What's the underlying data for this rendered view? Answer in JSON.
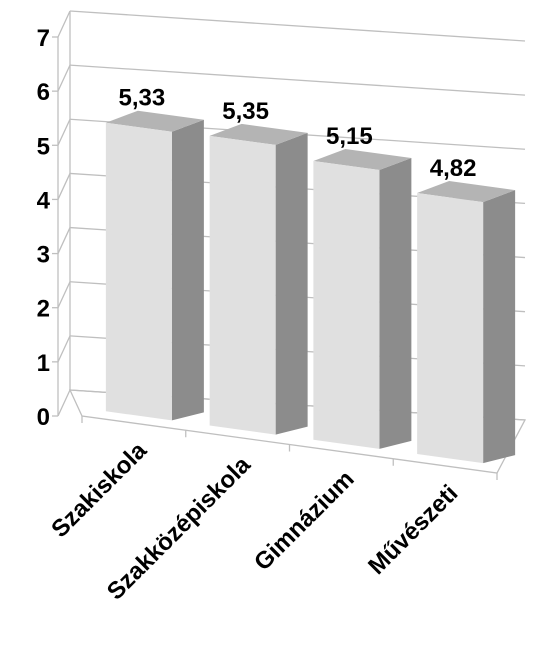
{
  "chart_data": {
    "type": "bar",
    "style": "3d",
    "categories": [
      "Szakiskola",
      "Szakközépiskola",
      "Gimnázium",
      "Művészeti"
    ],
    "values": [
      5.33,
      5.35,
      5.15,
      4.82
    ],
    "data_labels": [
      "5,33",
      "5,35",
      "5,15",
      "4,82"
    ],
    "y_ticks": [
      "0",
      "1",
      "2",
      "3",
      "4",
      "5",
      "6",
      "7"
    ],
    "ylim": [
      0,
      7
    ],
    "grid": true,
    "legend": "none",
    "colors": {
      "bar_front": "#e0e0e0",
      "bar_side": "#8c8c8c",
      "bar_top": "#b4b4b4",
      "grid": "#bfbfbf"
    }
  }
}
